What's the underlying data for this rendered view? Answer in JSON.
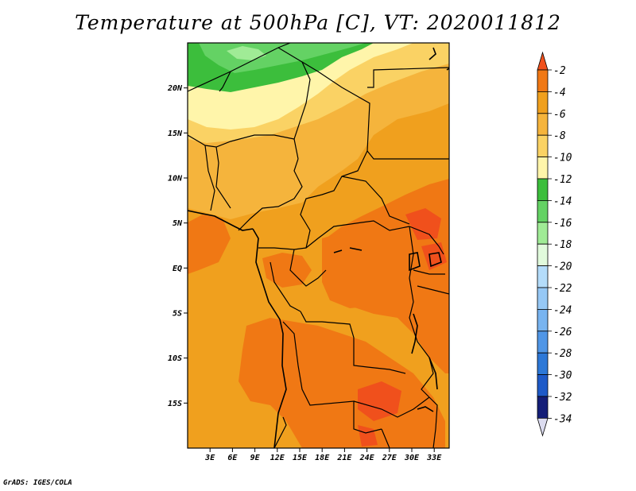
{
  "title": "Temperature at 500hPa [C], VT: 2020011812",
  "credit": "GrADS: IGES/COLA",
  "map": {
    "lon_range": [
      0,
      35
    ],
    "lat_range": [
      -20,
      25
    ],
    "lat_ticks": [
      {
        "value": 20,
        "label": "20N"
      },
      {
        "value": 15,
        "label": "15N"
      },
      {
        "value": 10,
        "label": "10N"
      },
      {
        "value": 5,
        "label": "5N"
      },
      {
        "value": 0,
        "label": "EQ"
      },
      {
        "value": -5,
        "label": "5S"
      },
      {
        "value": -10,
        "label": "10S"
      },
      {
        "value": -15,
        "label": "15S"
      }
    ],
    "lon_ticks": [
      {
        "value": 3,
        "label": "3E"
      },
      {
        "value": 6,
        "label": "6E"
      },
      {
        "value": 9,
        "label": "9E"
      },
      {
        "value": 12,
        "label": "12E"
      },
      {
        "value": 15,
        "label": "15E"
      },
      {
        "value": 18,
        "label": "18E"
      },
      {
        "value": 21,
        "label": "21E"
      },
      {
        "value": 24,
        "label": "24E"
      },
      {
        "value": 27,
        "label": "27E"
      },
      {
        "value": 30,
        "label": "30E"
      },
      {
        "value": 33,
        "label": "33E"
      }
    ]
  },
  "colorbar": {
    "levels": [
      "-2",
      "-4",
      "-6",
      "-8",
      "-10",
      "-12",
      "-14",
      "-16",
      "-18",
      "-20",
      "-22",
      "-24",
      "-26",
      "-28",
      "-30",
      "-32",
      "-34"
    ],
    "colors": [
      "#f0501c",
      "#f07814",
      "#f0a01e",
      "#f5b43c",
      "#fad264",
      "#fff5aa",
      "#3cbe3c",
      "#64d264",
      "#a0eb96",
      "#e1fadc",
      "#b4dcfa",
      "#96c8f5",
      "#78b4f0",
      "#5096e6",
      "#2d78d7",
      "#1e5ac8",
      "#141e78",
      "#dcdcf0"
    ]
  }
}
